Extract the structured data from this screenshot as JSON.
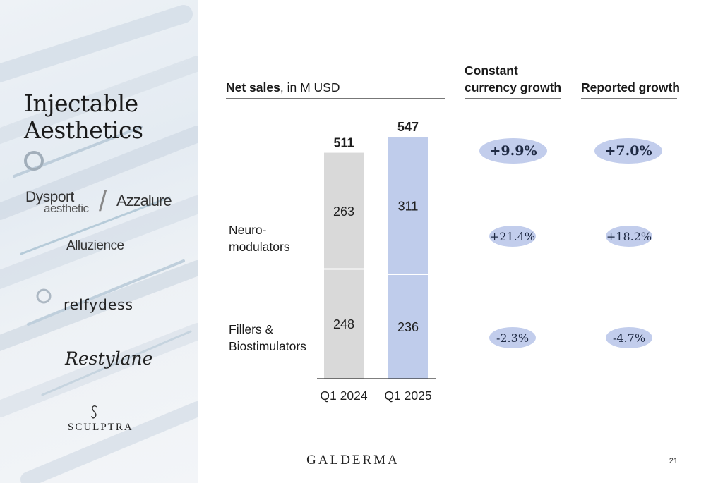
{
  "panel": {
    "title_line1": "Injectable",
    "title_line2": "Aesthetics",
    "brands": {
      "dysport": "Dysport",
      "dysport_sub": "aesthetic",
      "azzalure": "Azzalure",
      "alluzience": "Alluzience",
      "relfydess": "relfydess",
      "restylane": "Restylane",
      "sculptra": "SCULPTRA"
    }
  },
  "headers": {
    "net_sales_bold": "Net sales",
    "net_sales_rest": ", in M USD",
    "constant_line1": "Constant",
    "constant_line2": "currency growth",
    "reported": "Reported growth"
  },
  "rows": {
    "neuro_line1": "Neuro-",
    "neuro_line2": "modulators",
    "fillers_line1": "Fillers &",
    "fillers_line2": "Biostimulators"
  },
  "growth": {
    "total": {
      "constant": "+9.9%",
      "reported": "+7.0%"
    },
    "neuro": {
      "constant": "+21.4%",
      "reported": "+18.2%"
    },
    "fillers": {
      "constant": "-2.3%",
      "reported": "-4.7%"
    }
  },
  "chart_data": {
    "type": "bar",
    "stacked": true,
    "categories": [
      "Q1 2024",
      "Q1 2025"
    ],
    "series": [
      {
        "values": [
          248,
          236
        ]
      },
      {
        "values": [
          263,
          311
        ]
      }
    ],
    "totals": [
      511,
      547
    ],
    "colors": [
      "#d9d9d9",
      "#bfcceb"
    ],
    "title": "",
    "ylim": [
      0,
      547
    ]
  },
  "footer": {
    "company": "GALDERMA",
    "page": "21"
  }
}
